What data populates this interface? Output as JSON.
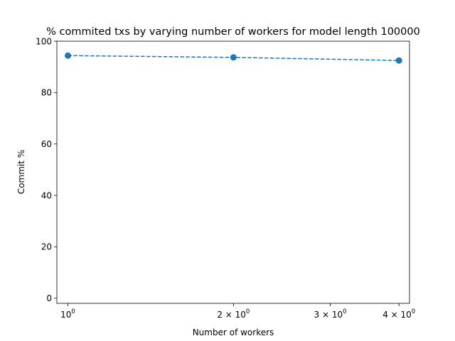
{
  "chart_data": {
    "type": "line",
    "title": "% commited txs by varying number of workers for model length 100000",
    "xlabel": "Number of workers",
    "ylabel": "Commit %",
    "x_scale": "log",
    "xlim": [
      0.955,
      4.18
    ],
    "ylim": [
      -2,
      100
    ],
    "x_ticks": [
      {
        "value": 1,
        "base": "10",
        "exp": "0"
      },
      {
        "value": 2,
        "base": "2 × 10",
        "exp": "0"
      },
      {
        "value": 3,
        "base": "3 × 10",
        "exp": "0"
      },
      {
        "value": 4,
        "base": "4 × 10",
        "exp": "0"
      }
    ],
    "y_ticks": [
      0,
      20,
      40,
      60,
      80,
      100
    ],
    "grid": false,
    "series": [
      {
        "color": "#1f77b4",
        "line_style": "dashed",
        "marker": "circle",
        "x": [
          1,
          2,
          4
        ],
        "y": [
          94.4,
          93.7,
          92.5
        ]
      }
    ]
  }
}
